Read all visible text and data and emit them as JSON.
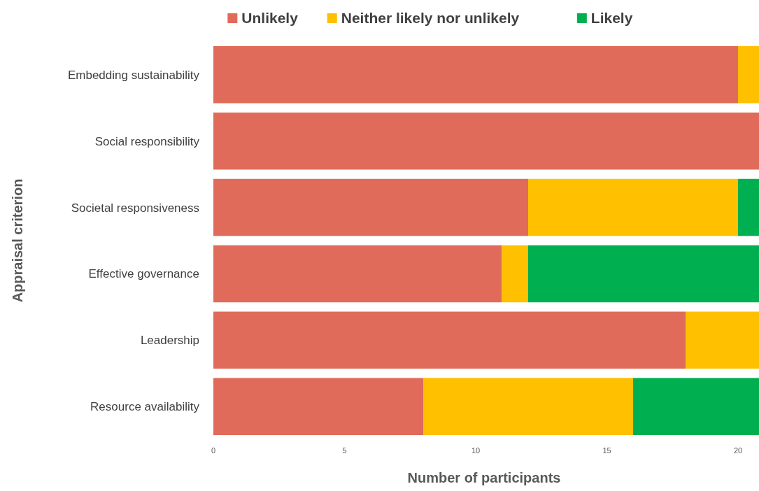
{
  "chart_data": {
    "type": "bar",
    "orientation": "horizontal",
    "stacked": true,
    "xlabel": "Number of participants",
    "ylabel": "Appraisal criterion",
    "categories": [
      "Embedding sustainability",
      "Social responsibility",
      "Societal responsiveness",
      "Effective governance",
      "Leadership",
      "Resource availability"
    ],
    "series": [
      {
        "name": "Unlikely",
        "color": "#e06b5a",
        "values": [
          20,
          20.8,
          12,
          11,
          18,
          8
        ]
      },
      {
        "name": "Neither likely nor unlikely",
        "color": "#ffc000",
        "values": [
          0.8,
          null,
          8,
          1,
          2.8,
          8
        ]
      },
      {
        "name": "Likely",
        "color": "#00b050",
        "values": [
          null,
          null,
          0.8,
          8.8,
          null,
          4.8
        ]
      }
    ],
    "xlim": [
      0,
      20.8
    ],
    "xticks": [
      0,
      5,
      10,
      15,
      20
    ],
    "grid": false,
    "legend": "top"
  }
}
